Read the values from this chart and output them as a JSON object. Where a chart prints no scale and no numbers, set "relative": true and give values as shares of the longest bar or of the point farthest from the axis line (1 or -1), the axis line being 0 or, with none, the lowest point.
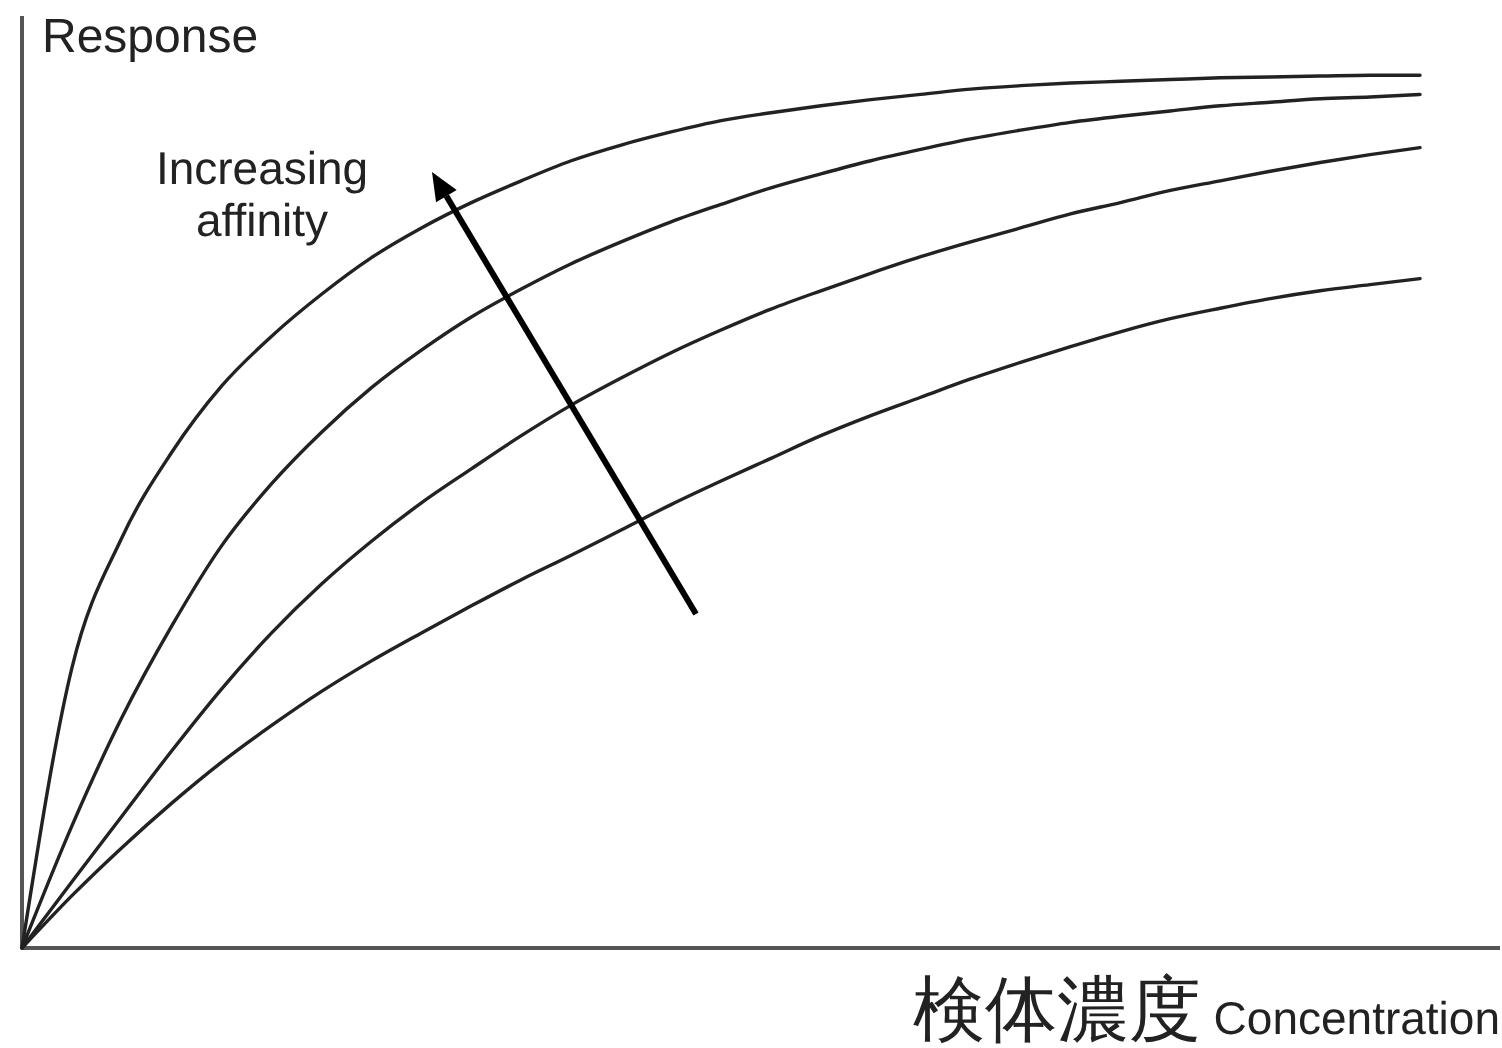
{
  "chart_data": {
    "type": "line",
    "relative": true,
    "ylabel": "Response",
    "xlabel": "検体濃度 Concentration",
    "annotations": [
      "Increasing affinity"
    ],
    "categories": [
      null,
      null,
      null,
      null,
      null,
      null,
      null,
      null,
      null,
      null,
      null,
      null,
      null,
      null,
      null,
      null,
      null,
      null,
      null,
      null,
      null,
      null,
      null,
      null,
      null,
      null,
      null,
      null,
      null
    ],
    "series": [
      {
        "color": "#222222",
        "values": [
          0,
          0.321,
          0.47,
          0.568,
          0.644,
          0.701,
          0.749,
          0.791,
          0.825,
          0.854,
          0.879,
          0.902,
          0.92,
          0.935,
          0.948,
          0.957,
          0.965,
          0.972,
          0.978,
          0.984,
          0.988,
          0.991,
          0.993,
          0.995,
          0.997,
          0.998,
          0.999,
          1,
          1
        ]
      },
      {
        "color": "#222222",
        "values": [
          0,
          0.14,
          0.264,
          0.369,
          0.461,
          0.532,
          0.591,
          0.642,
          0.685,
          0.723,
          0.755,
          0.784,
          0.809,
          0.832,
          0.852,
          0.871,
          0.887,
          0.902,
          0.915,
          0.927,
          0.937,
          0.946,
          0.953,
          0.959,
          0.965,
          0.969,
          0.973,
          0.975,
          0.978
        ]
      },
      {
        "color": "#222222",
        "values": [
          0,
          0.076,
          0.151,
          0.226,
          0.297,
          0.361,
          0.417,
          0.466,
          0.51,
          0.549,
          0.587,
          0.622,
          0.653,
          0.682,
          0.708,
          0.732,
          0.753,
          0.773,
          0.792,
          0.809,
          0.825,
          0.841,
          0.854,
          0.868,
          0.879,
          0.89,
          0.9,
          0.909,
          0.917
        ]
      },
      {
        "color": "#222222",
        "values": [
          0,
          0.06,
          0.115,
          0.166,
          0.213,
          0.255,
          0.294,
          0.329,
          0.361,
          0.392,
          0.422,
          0.45,
          0.479,
          0.508,
          0.535,
          0.561,
          0.587,
          0.61,
          0.631,
          0.652,
          0.671,
          0.689,
          0.706,
          0.721,
          0.733,
          0.744,
          0.753,
          0.76,
          0.767
        ]
      }
    ]
  }
}
